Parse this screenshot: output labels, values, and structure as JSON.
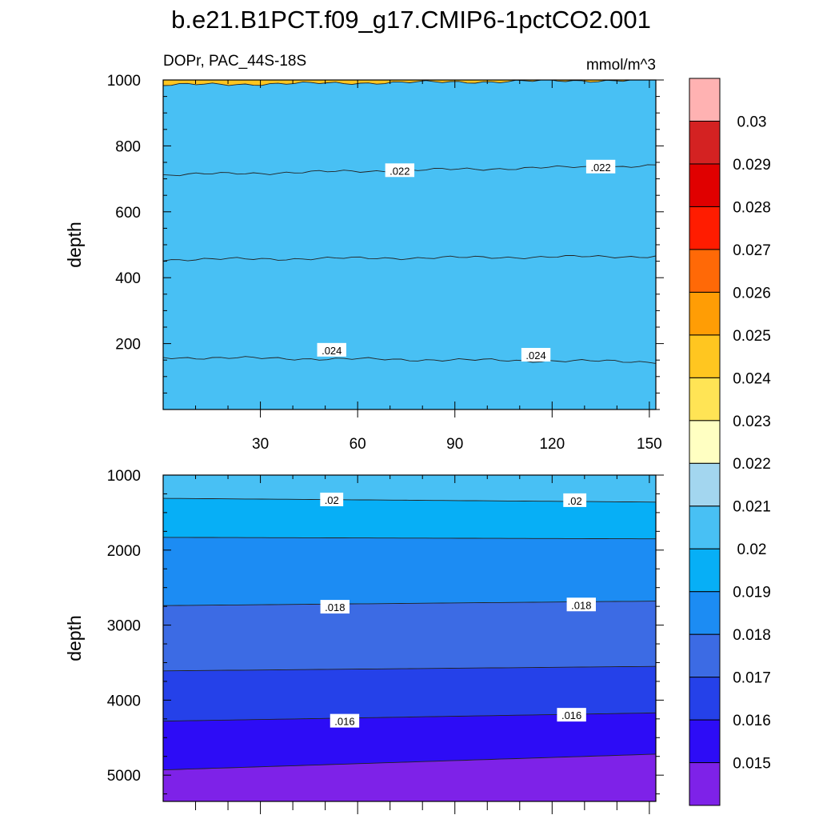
{
  "chart_data": {
    "type": "filled-contour",
    "title": "b.e21.B1PCT.f09_g17.CMIP6-1pctCO2.001",
    "variable_label": "DOPr, PAC_44S-18S",
    "units": "mmol/m^3",
    "x_ticks": [
      "30",
      "60",
      "90",
      "120",
      "150"
    ],
    "xlim": [
      0,
      152
    ],
    "colorbar": {
      "levels": [
        "0.015",
        "0.016",
        "0.017",
        "0.018",
        "0.019",
        "0.02",
        "0.021",
        "0.022",
        "0.023",
        "0.024",
        "0.025",
        "0.026",
        "0.027",
        "0.028",
        "0.029",
        "0.03"
      ],
      "colors": [
        "#7e22e8",
        "#2d0cf6",
        "#2541e9",
        "#3c6be4",
        "#1c8cf3",
        "#07aff6",
        "#48c0f4",
        "#a3d6ef",
        "#ffffc2",
        "#ffe455",
        "#ffc620",
        "#ff9d05",
        "#ff6907",
        "#ff1c00",
        "#e00000",
        "#d42222",
        "#ffb2b2"
      ]
    },
    "panels": [
      {
        "name": "upper",
        "ylabel": "depth",
        "ylim": [
          1000,
          0
        ],
        "y_ticks": [
          "200",
          "400",
          "600",
          "800",
          "1000"
        ],
        "contours": [
          {
            "level": 0.024,
            "label": ".024",
            "depth_start": 158,
            "depth_end": 145
          },
          {
            "level": 0.023,
            "label": "",
            "depth_start": 455,
            "depth_end": 465
          },
          {
            "level": 0.022,
            "label": ".022",
            "depth_start": 712,
            "depth_end": 740
          },
          {
            "level": 0.021,
            "label": "",
            "depth_start": 985,
            "depth_end": 1000
          }
        ],
        "contour_labels": [
          {
            "text": ".024",
            "x": 52,
            "depth": 180
          },
          {
            "text": ".024",
            "x": 115,
            "depth": 165
          },
          {
            "text": ".022",
            "x": 73,
            "depth": 725
          },
          {
            "text": ".022",
            "x": 135,
            "depth": 736
          }
        ]
      },
      {
        "name": "lower",
        "ylabel": "depth",
        "ylim": [
          1000,
          5350
        ],
        "y_ticks": [
          "1000",
          "2000",
          "3000",
          "4000",
          "5000"
        ],
        "contours": [
          {
            "level": 0.021,
            "label": "",
            "depth_start": 1000,
            "depth_end": 1000
          },
          {
            "level": 0.02,
            "label": ".02",
            "depth_start": 1310,
            "depth_end": 1360
          },
          {
            "level": 0.019,
            "label": "",
            "depth_start": 1830,
            "depth_end": 1850
          },
          {
            "level": 0.018,
            "label": ".018",
            "depth_start": 2740,
            "depth_end": 2680
          },
          {
            "level": 0.017,
            "label": "",
            "depth_start": 3610,
            "depth_end": 3550
          },
          {
            "level": 0.016,
            "label": ".016",
            "depth_start": 4280,
            "depth_end": 4170
          },
          {
            "level": 0.015,
            "label": "",
            "depth_start": 4930,
            "depth_end": 4720
          }
        ],
        "contour_labels": [
          {
            "text": ".02",
            "x": 52,
            "depth": 1330
          },
          {
            "text": ".02",
            "x": 127,
            "depth": 1340
          },
          {
            "text": ".018",
            "x": 53,
            "depth": 2760
          },
          {
            "text": ".018",
            "x": 129,
            "depth": 2730
          },
          {
            "text": ".016",
            "x": 56,
            "depth": 4280
          },
          {
            "text": ".016",
            "x": 126,
            "depth": 4200
          }
        ]
      }
    ]
  }
}
